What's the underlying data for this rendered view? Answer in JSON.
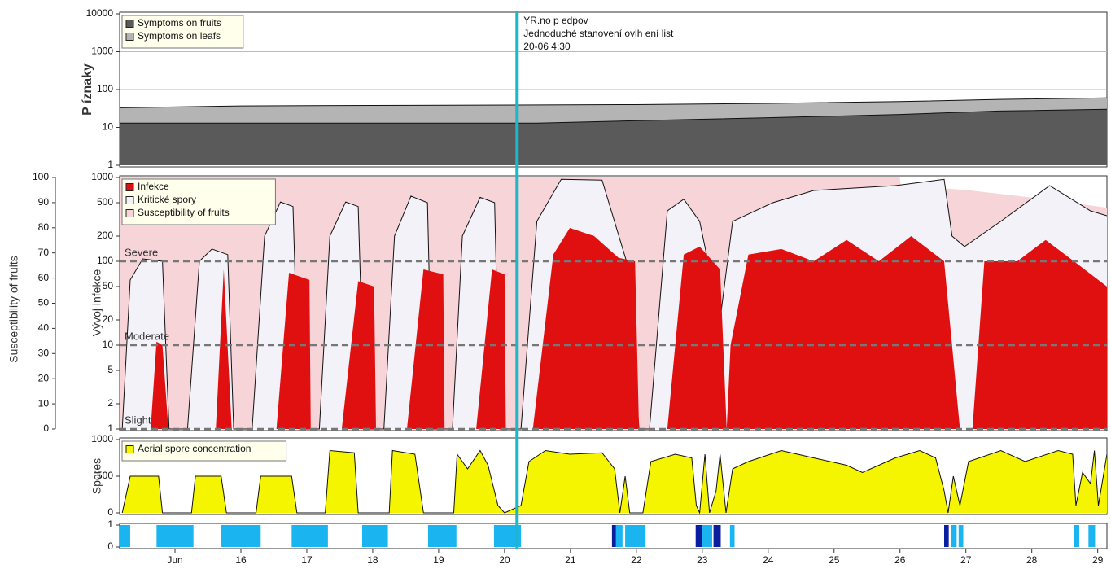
{
  "chart_data": [
    {
      "type": "area",
      "ylabel": "P íznaky",
      "yscale": "log",
      "xlim": [
        14.16,
        29.14
      ],
      "ylim": [
        1,
        10000
      ],
      "yticks": [
        1,
        10,
        100,
        1000,
        10000
      ],
      "grid": true,
      "legend": "upper left",
      "series": [
        {
          "name": "Symptoms on fruits",
          "color": "#5a5a5a",
          "x": [
            14.16,
            20.5,
            22.0,
            24.0,
            26.0,
            27.5,
            29.14
          ],
          "values": [
            13,
            13,
            15,
            18,
            22,
            27,
            30
          ]
        },
        {
          "name": "Symptoms on leafs",
          "color": "#b4b4b4",
          "x": [
            14.16,
            16.0,
            18.0,
            22.0,
            24.0,
            26.0,
            27.5,
            29.14
          ],
          "values": [
            33,
            37,
            38,
            40,
            43,
            48,
            55,
            60
          ]
        }
      ]
    },
    {
      "type": "area",
      "ylabel": "Vývoj infekce",
      "yscale": "log",
      "y2label": "Susceptibility of fruits",
      "xlim": [
        14.16,
        29.14
      ],
      "ylim": [
        1,
        1000
      ],
      "yticks": [
        1,
        2,
        5,
        10,
        20,
        50,
        100,
        200,
        500,
        1000
      ],
      "y2lim": [
        0,
        100
      ],
      "y2ticks": [
        0,
        10,
        20,
        30,
        40,
        50,
        60,
        70,
        80,
        90,
        100
      ],
      "legend": "upper left",
      "thresholds": [
        {
          "value": 100,
          "label": "Severe"
        },
        {
          "value": 10,
          "label": "Moderate"
        },
        {
          "value": 1,
          "label": "Slight"
        }
      ],
      "series": [
        {
          "name": "Infekce",
          "color": "#e01010",
          "x": [
            14.63,
            14.72,
            14.81,
            14.9,
            15.62,
            15.74,
            15.86,
            16.54,
            16.73,
            17.04,
            17.06,
            17.53,
            17.78,
            18.02,
            18.05,
            18.52,
            18.77,
            19.07,
            19.09,
            19.57,
            19.81,
            20.0,
            20.02,
            20.43,
            20.74,
            20.99,
            21.36,
            21.73,
            21.98,
            22.04,
            22.47,
            22.72,
            22.96,
            23.27,
            23.37,
            23.43,
            23.7,
            24.2,
            24.69,
            25.19,
            25.68,
            26.17,
            26.67,
            26.91,
            27.1,
            27.28,
            27.78,
            28.21,
            28.64,
            29.14
          ],
          "values": [
            1,
            11,
            10,
            1,
            1,
            80,
            1,
            1,
            73,
            60,
            1,
            1,
            58,
            50,
            1,
            1,
            80,
            70,
            1,
            1,
            80,
            70,
            1,
            1,
            120,
            250,
            200,
            110,
            100,
            1,
            1,
            120,
            150,
            80,
            1,
            10,
            120,
            140,
            100,
            180,
            100,
            200,
            100,
            1,
            1,
            100,
            100,
            180,
            100,
            50
          ]
        },
        {
          "name": "Kritické spory",
          "color": "#f2f2f8",
          "x": [
            14.2,
            14.32,
            14.51,
            14.81,
            14.91,
            15.19,
            15.37,
            15.56,
            15.8,
            15.89,
            16.17,
            16.36,
            16.6,
            16.79,
            16.89,
            17.19,
            17.35,
            17.59,
            17.78,
            17.88,
            18.17,
            18.33,
            18.58,
            18.83,
            18.91,
            19.21,
            19.36,
            19.63,
            19.85,
            19.93,
            20.25,
            20.49,
            20.86,
            21.48,
            21.85,
            22.04,
            22.2,
            22.47,
            22.72,
            22.96,
            23.27,
            23.46,
            24.07,
            24.69,
            25.93,
            26.67,
            26.79,
            26.98,
            27.53,
            28.27,
            28.89,
            29.14
          ],
          "values": [
            1,
            60,
            107,
            100,
            1,
            1,
            100,
            140,
            120,
            1,
            1,
            200,
            510,
            450,
            1,
            1,
            200,
            510,
            450,
            1,
            1,
            200,
            600,
            500,
            1,
            1,
            200,
            580,
            500,
            1,
            1,
            300,
            950,
            930,
            100,
            1,
            1,
            400,
            550,
            300,
            20,
            300,
            500,
            700,
            800,
            950,
            200,
            150,
            300,
            800,
            400,
            350
          ]
        },
        {
          "name": "Susceptibility of fruits",
          "color": "#f6d4d8",
          "axis": "y2",
          "x": [
            14.16,
            26.0,
            26.01,
            27.0,
            28.0,
            29.14
          ],
          "values": [
            100,
            100,
            97,
            95,
            92,
            88
          ]
        }
      ]
    },
    {
      "type": "area",
      "ylabel": "Spores",
      "xlim": [
        14.16,
        29.14
      ],
      "ylim": [
        0,
        1000
      ],
      "yticks": [
        0,
        500,
        1000
      ],
      "legend": "upper left",
      "series": [
        {
          "name": "Aerial spore concentration",
          "color": "#f5f500",
          "x": [
            14.2,
            14.32,
            14.75,
            14.81,
            15.25,
            15.31,
            15.7,
            15.78,
            16.23,
            16.3,
            16.77,
            16.85,
            17.28,
            17.35,
            17.72,
            17.78,
            18.25,
            18.3,
            18.64,
            18.77,
            19.23,
            19.28,
            19.44,
            19.63,
            19.75,
            19.9,
            20.0,
            20.25,
            20.37,
            20.62,
            20.99,
            21.48,
            21.67,
            21.75,
            21.83,
            21.9,
            22.1,
            22.22,
            22.59,
            22.84,
            22.91,
            22.96,
            23.04,
            23.11,
            23.21,
            23.27,
            23.36,
            23.46,
            23.7,
            24.2,
            24.69,
            25.19,
            25.43,
            25.93,
            26.3,
            26.54,
            26.67,
            26.73,
            26.81,
            26.91,
            27.04,
            27.53,
            27.9,
            28.4,
            28.62,
            28.67,
            28.77,
            28.89,
            28.95,
            29.01,
            29.14
          ],
          "values": [
            0,
            500,
            500,
            0,
            0,
            500,
            500,
            0,
            0,
            500,
            500,
            0,
            0,
            850,
            820,
            0,
            0,
            850,
            800,
            0,
            0,
            800,
            600,
            850,
            650,
            100,
            0,
            100,
            700,
            850,
            800,
            820,
            600,
            0,
            500,
            0,
            0,
            700,
            800,
            750,
            100,
            0,
            800,
            0,
            300,
            800,
            0,
            600,
            700,
            850,
            750,
            650,
            550,
            750,
            850,
            750,
            300,
            0,
            500,
            100,
            700,
            850,
            700,
            850,
            800,
            100,
            550,
            400,
            850,
            100,
            800
          ]
        }
      ]
    },
    {
      "type": "timeline",
      "xlim": [
        14.16,
        29.14
      ],
      "ylim": [
        0,
        1
      ],
      "yticks": [
        0,
        1
      ],
      "xticks": [
        {
          "value": 15,
          "label": "Jun"
        },
        16,
        17,
        18,
        19,
        20,
        21,
        22,
        23,
        24,
        25,
        26,
        27,
        28,
        29
      ],
      "series": [
        {
          "color": "#1ab4f0",
          "intervals": [
            [
              14.16,
              14.32
            ],
            [
              14.72,
              15.28
            ],
            [
              15.7,
              16.3
            ],
            [
              16.77,
              17.32
            ],
            [
              17.84,
              18.23
            ],
            [
              18.84,
              19.27
            ],
            [
              19.84,
              20.25
            ],
            [
              21.69,
              21.79
            ],
            [
              21.83,
              22.14
            ],
            [
              22.99,
              23.15
            ],
            [
              23.42,
              23.49
            ],
            [
              26.77,
              26.86
            ],
            [
              26.89,
              26.96
            ],
            [
              28.64,
              28.72
            ],
            [
              28.86,
              28.96
            ]
          ]
        },
        {
          "color": "#0a1ea0",
          "intervals": [
            [
              21.63,
              21.69
            ],
            [
              22.9,
              22.99
            ],
            [
              23.17,
              23.28
            ],
            [
              26.67,
              26.74
            ]
          ]
        }
      ]
    }
  ],
  "marker": {
    "x": 20.19,
    "color": "#1ab8c8",
    "lines": [
      "YR.no p edpov",
      "Jednoduché stanovení ovlh ení list",
      "20-06 4:30"
    ]
  }
}
